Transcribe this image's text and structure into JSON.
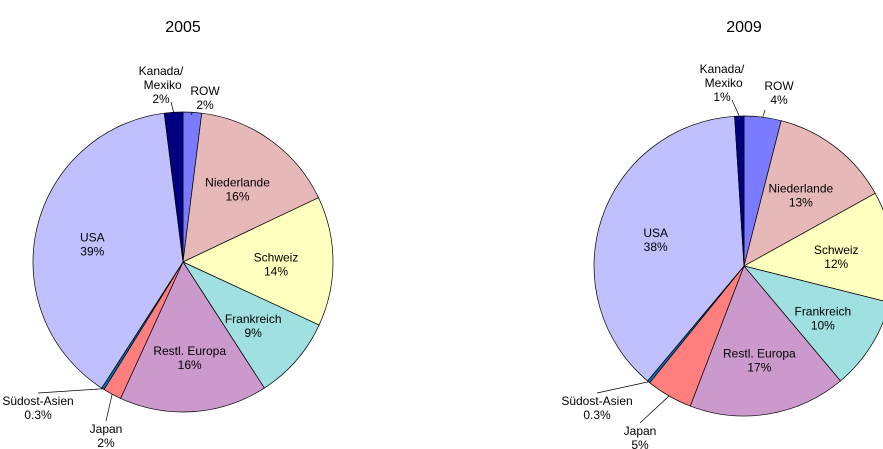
{
  "chart_data": [
    {
      "type": "pie",
      "title": "2005",
      "categories": [
        "ROW",
        "Niederlande",
        "Schweiz",
        "Frankreich",
        "Restl. Europa",
        "Japan",
        "Südost-Asien",
        "USA",
        "Kanada/ Mexiko"
      ],
      "values": [
        2,
        16,
        14,
        9,
        16,
        2,
        0.3,
        39,
        2
      ],
      "value_labels": [
        "2%",
        "16%",
        "14%",
        "9%",
        "16%",
        "2%",
        "0.3%",
        "39%",
        "2%"
      ],
      "colors": [
        "#7b7bff",
        "#e6b9b8",
        "#ffffc0",
        "#a0e0e0",
        "#cc99cc",
        "#ff7f7f",
        "#0070c0",
        "#c0c0ff",
        "#000080"
      ]
    },
    {
      "type": "pie",
      "title": "2009",
      "categories": [
        "ROW",
        "Niederlande",
        "Schweiz",
        "Frankreich",
        "Restl. Europa",
        "Japan",
        "Südost-Asien",
        "USA",
        "Kanada/ Mexiko"
      ],
      "values": [
        4,
        13,
        12,
        10,
        17,
        5,
        0.3,
        38,
        1
      ],
      "value_labels": [
        "4%",
        "13%",
        "12%",
        "10%",
        "17%",
        "5%",
        "0.3%",
        "38%",
        "1%"
      ],
      "colors": [
        "#7b7bff",
        "#e6b9b8",
        "#ffffc0",
        "#a0e0e0",
        "#cc99cc",
        "#ff7f7f",
        "#0070c0",
        "#c0c0ff",
        "#000080"
      ]
    }
  ]
}
